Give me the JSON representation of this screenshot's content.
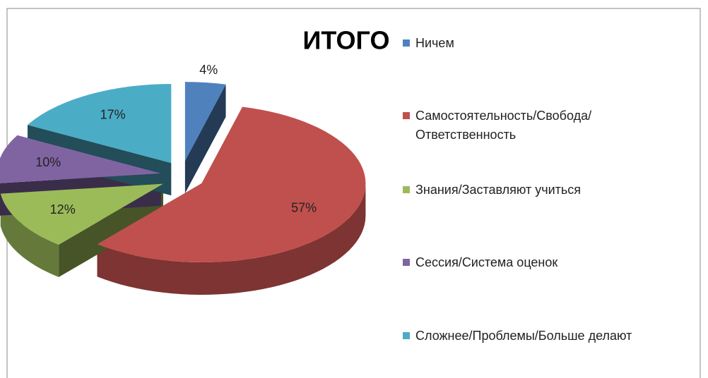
{
  "chart_data": {
    "type": "pie",
    "title": "ИТОГО",
    "categories": [
      "Ничем",
      "Самостоятельность/Свобода/Ответственность",
      "Знания/Заставляют учиться",
      "Сессия/Система оценок",
      "Сложнее/Проблемы/Больше делают"
    ],
    "values": [
      4,
      57,
      12,
      10,
      17
    ],
    "value_labels": [
      "4%",
      "57%",
      "12%",
      "10%",
      "17%"
    ],
    "colors": [
      "#4f81bd",
      "#c0504d",
      "#9bbb59",
      "#8064a2",
      "#4bacc6"
    ],
    "legend": "right"
  }
}
